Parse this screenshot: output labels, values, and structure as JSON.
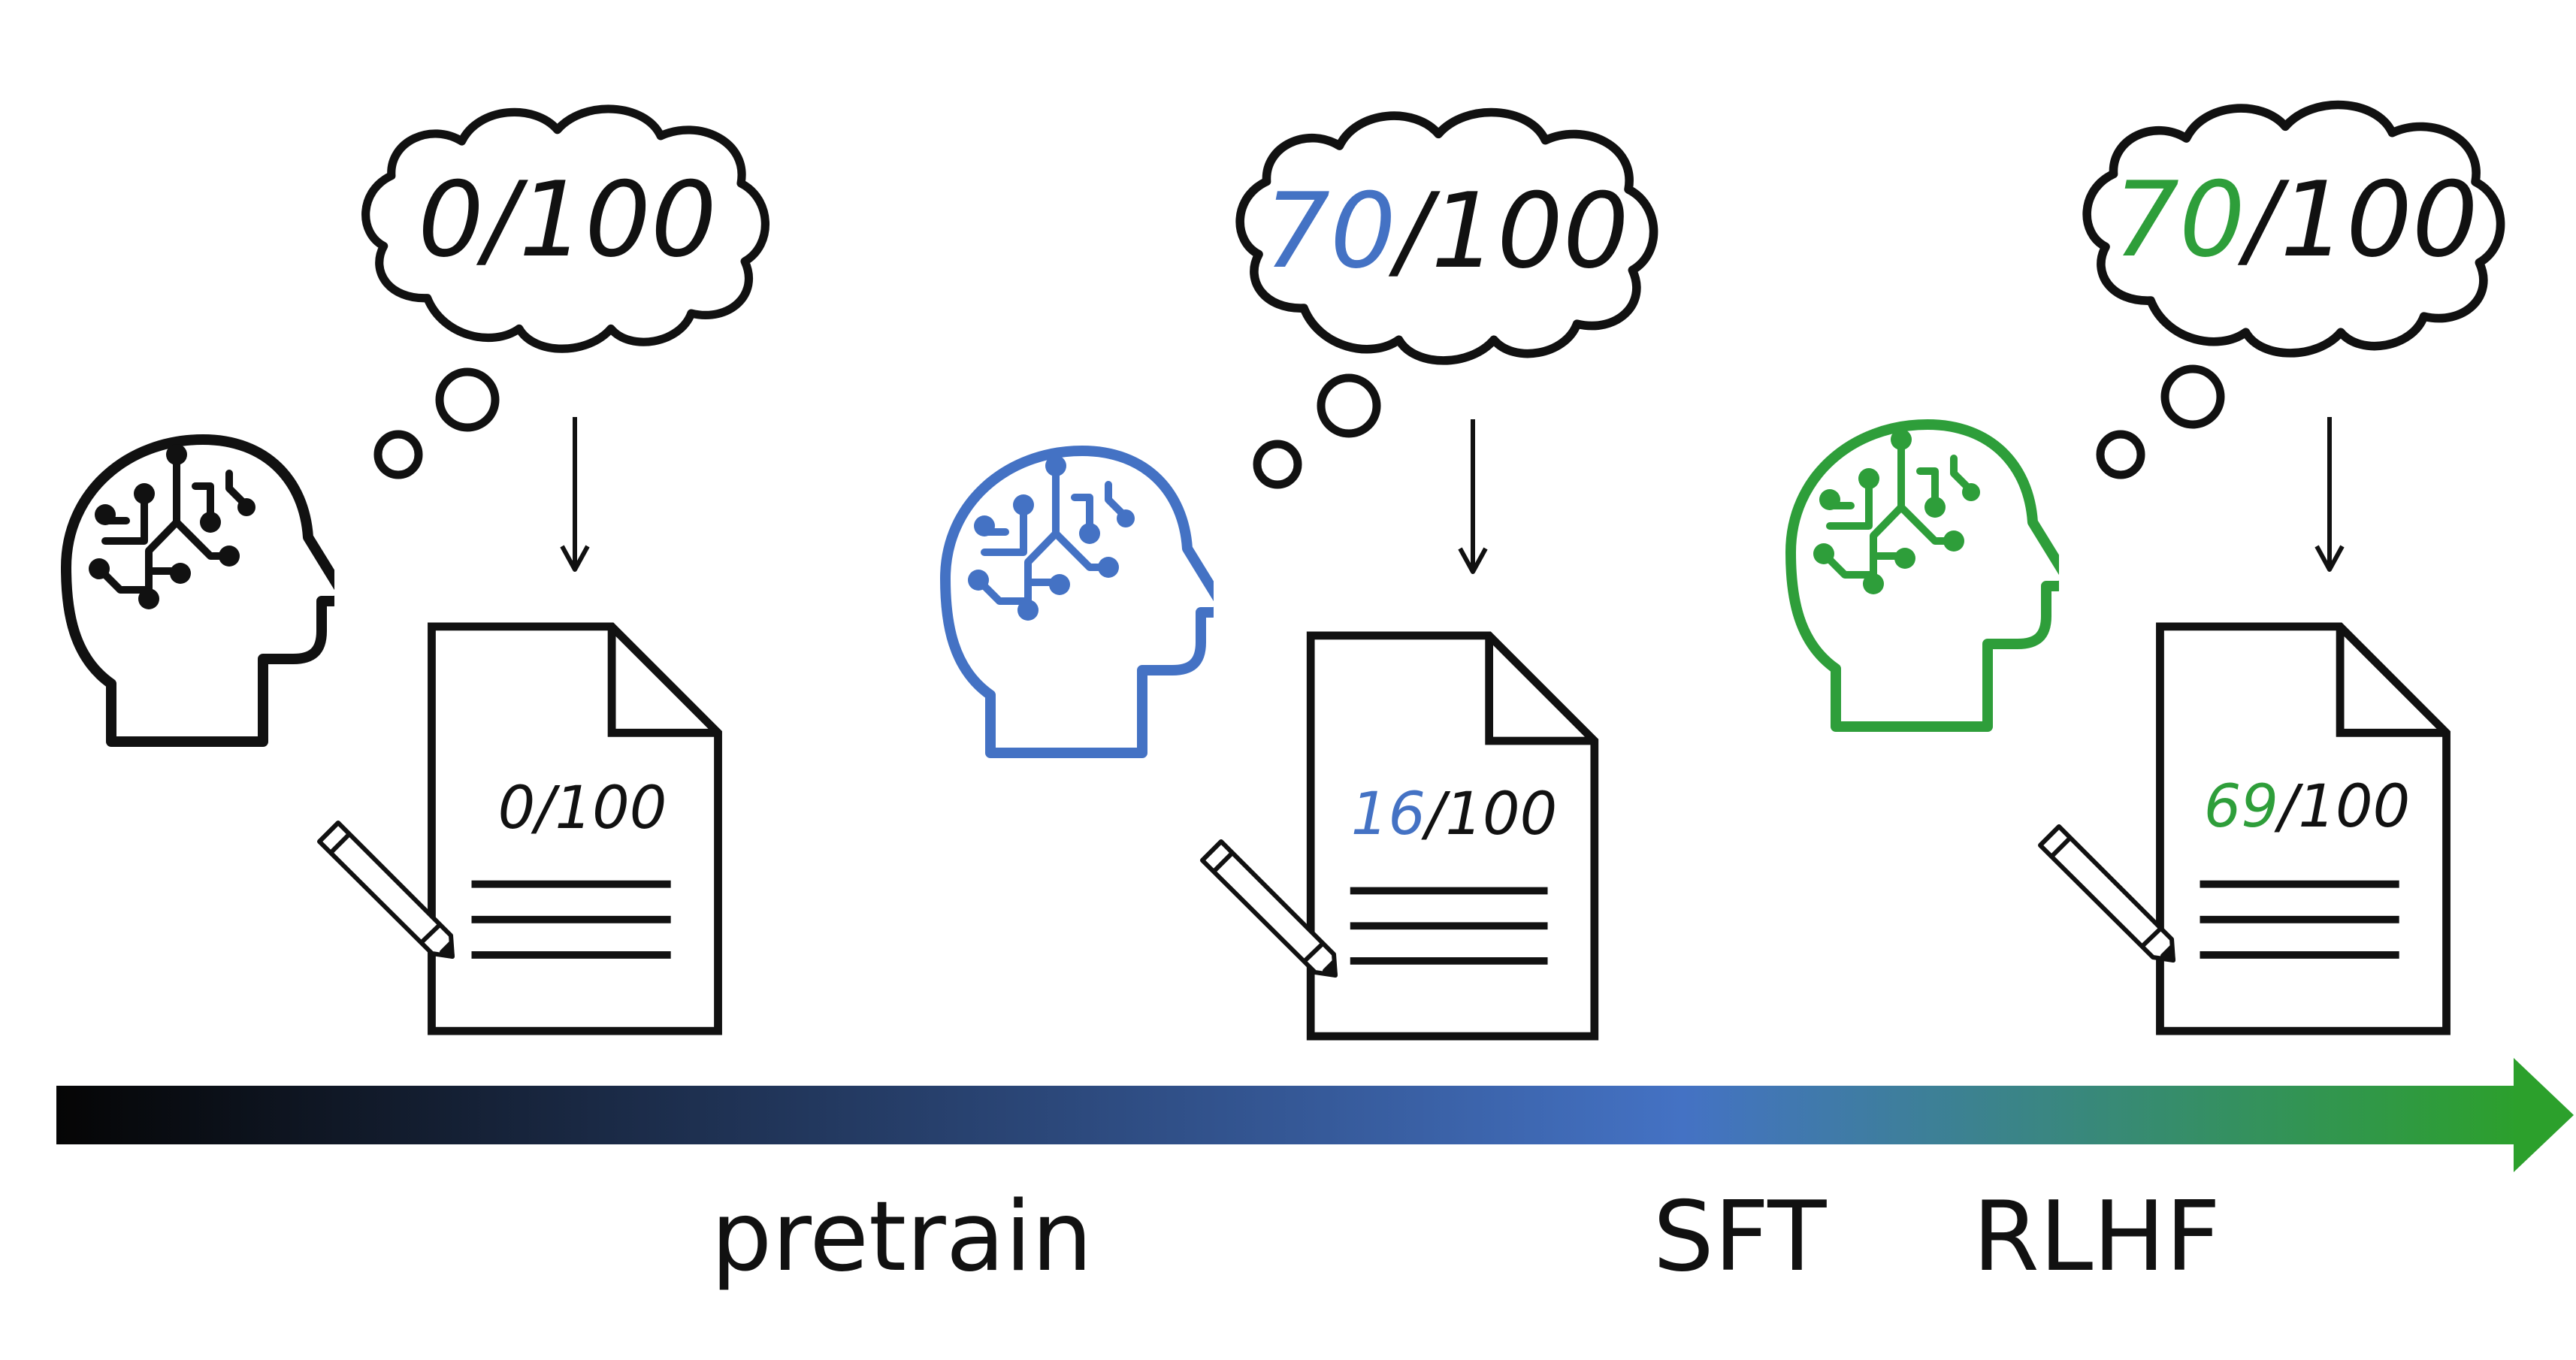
{
  "colors": {
    "black": "#111111",
    "blue": "#4472C4",
    "green": "#2E9E3A",
    "arrow_start": "#050505",
    "arrow_mid": "#4472C4",
    "arrow_end": "#2CA02C"
  },
  "icons": [
    "brain-circuit-head-icon",
    "thought-cloud-icon",
    "document-icon",
    "pencil-icon",
    "down-arrow-icon"
  ],
  "stages": [
    {
      "head_color": "black",
      "cloud_score": "0",
      "cloud_total": "/100",
      "doc_score": "0",
      "doc_total": "/100"
    },
    {
      "head_color": "blue",
      "cloud_score": "70",
      "cloud_total": "/100",
      "doc_score": "16",
      "doc_total": "/100"
    },
    {
      "head_color": "green",
      "cloud_score": "70",
      "cloud_total": "/100",
      "doc_score": "69",
      "doc_total": "/100"
    }
  ],
  "timeline": {
    "labels": [
      "pretrain",
      "SFT",
      "RLHF"
    ]
  }
}
